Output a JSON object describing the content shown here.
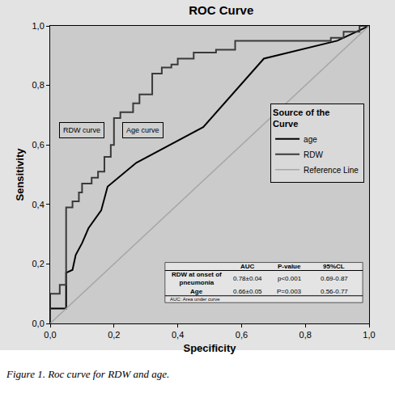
{
  "chart_data": {
    "type": "line",
    "title": "ROC Curve",
    "xlabel": "Specificity",
    "ylabel": "Sensitivity",
    "caption": "Figure 1. Roc curve for RDW and age.",
    "xlim": [
      0,
      1
    ],
    "ylim": [
      0,
      1
    ],
    "xticks": [
      {
        "value": 0,
        "label": "0,0"
      },
      {
        "value": 0.2,
        "label": "0,2"
      },
      {
        "value": 0.4,
        "label": "0,4"
      },
      {
        "value": 0.6,
        "label": "0,6"
      },
      {
        "value": 0.8,
        "label": "0,8"
      },
      {
        "value": 1,
        "label": "1,0"
      }
    ],
    "yticks": [
      {
        "value": 0,
        "label": "0,0"
      },
      {
        "value": 0.2,
        "label": "0,2"
      },
      {
        "value": 0.4,
        "label": "0,4"
      },
      {
        "value": 0.6,
        "label": "0,6"
      },
      {
        "value": 0.8,
        "label": "0,8"
      },
      {
        "value": 1,
        "label": "1,0"
      }
    ],
    "grid": false,
    "legend": "right",
    "legend_title": "Source of the Curve",
    "series": [
      {
        "name": "age",
        "color": "#000000",
        "line_style": "solid",
        "x": [
          0,
          0,
          0.05,
          0.05,
          0.07,
          0.08,
          0.1,
          0.12,
          0.16,
          0.18,
          0.27,
          0.48,
          0.67,
          0.9,
          1
        ],
        "values": [
          0,
          0.05,
          0.05,
          0.17,
          0.18,
          0.23,
          0.27,
          0.32,
          0.38,
          0.46,
          0.54,
          0.66,
          0.89,
          0.95,
          1
        ]
      },
      {
        "name": "RDW",
        "color": "#3a3a3a",
        "line_style": "solid",
        "x": [
          0,
          0,
          0.03,
          0.03,
          0.05,
          0.05,
          0.07,
          0.07,
          0.09,
          0.09,
          0.1,
          0.1,
          0.13,
          0.13,
          0.15,
          0.15,
          0.17,
          0.17,
          0.19,
          0.19,
          0.2,
          0.2,
          0.22,
          0.22,
          0.26,
          0.26,
          0.28,
          0.28,
          0.32,
          0.32,
          0.35,
          0.35,
          0.38,
          0.38,
          0.4,
          0.4,
          0.45,
          0.45,
          0.52,
          0.52,
          0.58,
          0.58,
          0.88,
          0.88,
          0.92,
          0.92,
          0.97,
          0.97,
          1
        ],
        "values": [
          0,
          0.1,
          0.1,
          0.13,
          0.13,
          0.39,
          0.39,
          0.41,
          0.41,
          0.44,
          0.44,
          0.47,
          0.47,
          0.49,
          0.49,
          0.51,
          0.51,
          0.56,
          0.56,
          0.6,
          0.6,
          0.69,
          0.69,
          0.71,
          0.71,
          0.74,
          0.74,
          0.77,
          0.77,
          0.84,
          0.84,
          0.86,
          0.86,
          0.87,
          0.87,
          0.89,
          0.89,
          0.91,
          0.91,
          0.92,
          0.92,
          0.95,
          0.95,
          0.96,
          0.96,
          0.98,
          0.98,
          1,
          1
        ]
      },
      {
        "name": "Reference Line",
        "color": "#a6a6a6",
        "line_style": "solid",
        "x": [
          0,
          1
        ],
        "values": [
          0,
          1
        ]
      }
    ],
    "annotations": [
      {
        "text": "RDW curve",
        "x": 0.1,
        "y": 0.65
      },
      {
        "text": "Age curve",
        "x": 0.29,
        "y": 0.65
      }
    ],
    "table": {
      "header": [
        "AUC",
        "P-value",
        "95%CL"
      ],
      "rows": [
        [
          "RDW at onset of pneumonia",
          "0.78±0.04",
          "p<0.001",
          "0.69-0.87"
        ],
        [
          "Age",
          "0.66±0.05",
          "P=0.003",
          "0.56-0.77"
        ]
      ],
      "note": "AUC: Area under curve"
    }
  }
}
